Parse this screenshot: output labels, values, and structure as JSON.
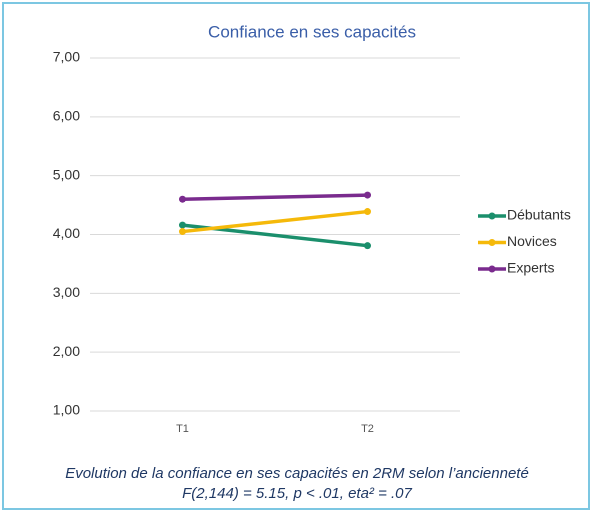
{
  "chart_data": {
    "type": "line",
    "title": "Confiance en ses capacités",
    "categories": [
      "T1",
      "T2"
    ],
    "series": [
      {
        "name": "Débutants",
        "color": "#1b8f6c",
        "values": [
          4.16,
          3.81
        ]
      },
      {
        "name": "Novices",
        "color": "#f5b90a",
        "values": [
          4.05,
          4.39
        ]
      },
      {
        "name": "Experts",
        "color": "#7a2b8e",
        "values": [
          4.6,
          4.67
        ]
      }
    ],
    "ylim": [
      1,
      7
    ],
    "yticks": [
      {
        "value": 1,
        "label": "1,00"
      },
      {
        "value": 2,
        "label": "2,00"
      },
      {
        "value": 3,
        "label": "3,00"
      },
      {
        "value": 4,
        "label": "4,00"
      },
      {
        "value": 5,
        "label": "5,00"
      },
      {
        "value": 6,
        "label": "6,00"
      },
      {
        "value": 7,
        "label": "7,00"
      }
    ],
    "grid": true,
    "legend": "right",
    "caption": [
      "Evolution de la confiance en ses capacités en 2RM selon l’ancienneté",
      "F(2,144) = 5.15, p < .01, eta² = .07"
    ]
  }
}
